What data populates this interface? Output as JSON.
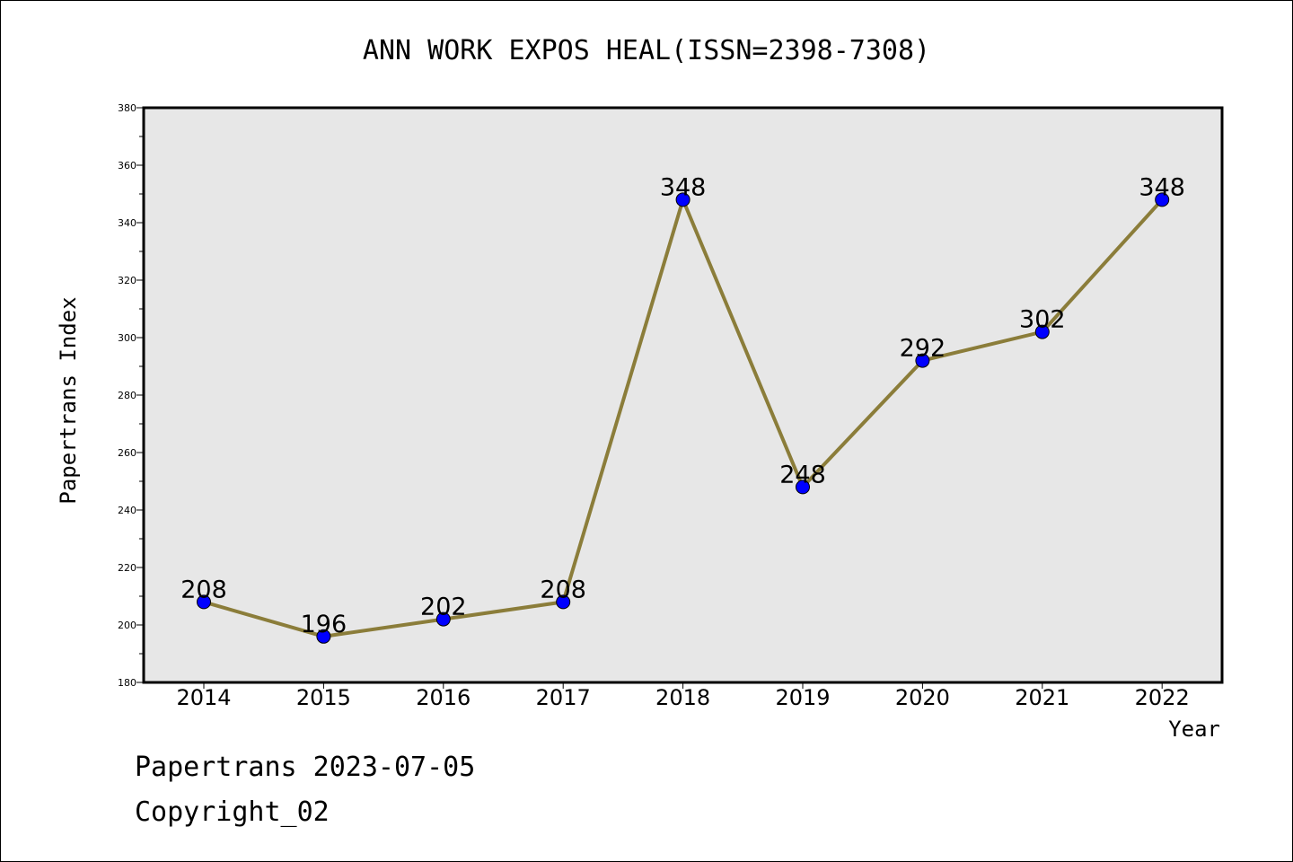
{
  "chart_data": {
    "type": "line",
    "title": "ANN WORK EXPOS HEAL(ISSN=2398-7308)",
    "xlabel": "Year",
    "ylabel": "Papertrans Index",
    "categories": [
      "2014",
      "2015",
      "2016",
      "2017",
      "2018",
      "2019",
      "2020",
      "2021",
      "2022"
    ],
    "series": [
      {
        "values": [
          208,
          196,
          202,
          208,
          348,
          248,
          292,
          302,
          348
        ]
      }
    ],
    "ylim": [
      180,
      380
    ],
    "yticks": [
      180,
      200,
      220,
      240,
      260,
      280,
      300,
      320,
      340,
      360,
      380
    ],
    "grid": false,
    "colors": {
      "line": "#8B7D3A",
      "marker": "#0000FF",
      "plot_bg": "#E7E7E7"
    }
  },
  "footer": {
    "line1": "Papertrans 2023-07-05",
    "line2": "Copyright_02"
  }
}
